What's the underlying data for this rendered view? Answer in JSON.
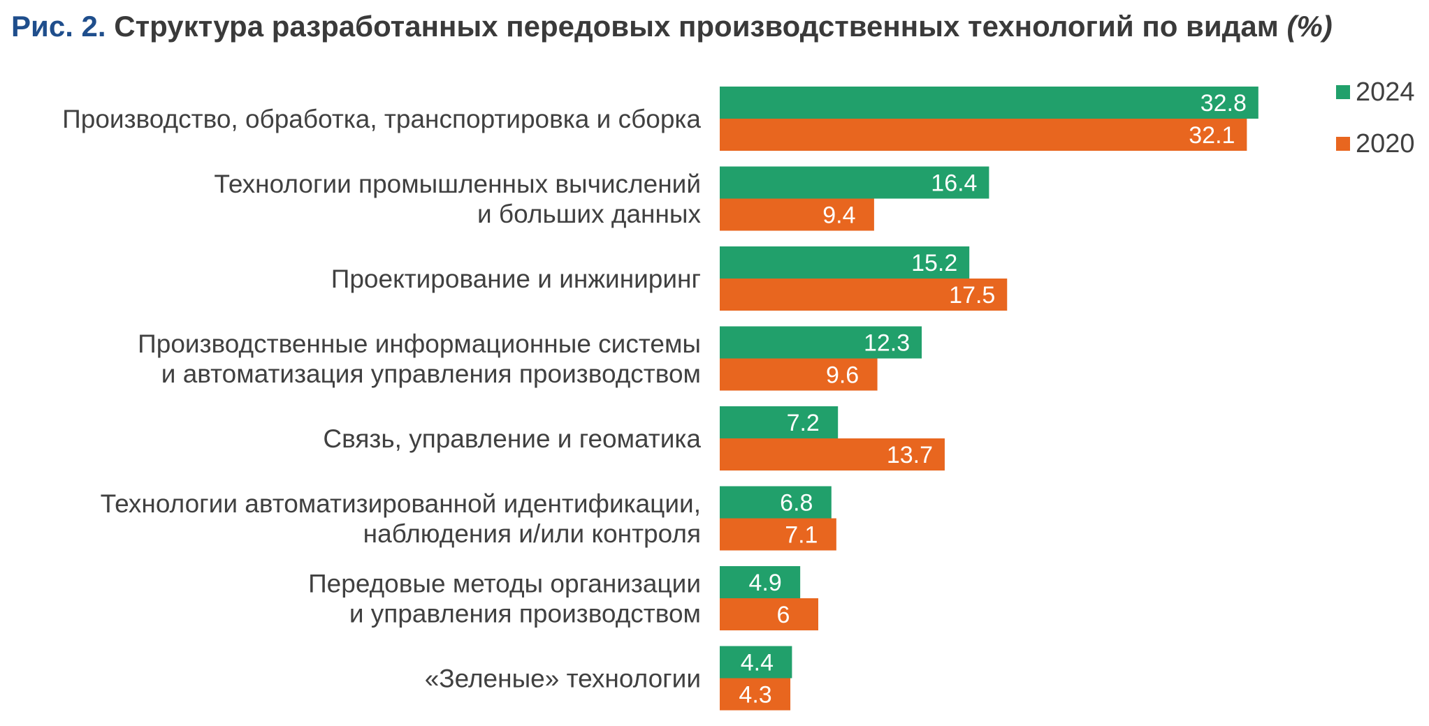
{
  "header": {
    "fig_num": "Рис. 2.",
    "title": "Структура разработанных передовых производственных технологий по видам",
    "unit": "(%)"
  },
  "chart_data": {
    "type": "bar",
    "orientation": "horizontal",
    "title": "Структура разработанных передовых производственных технологий по видам",
    "unit": "(%)",
    "categories": [
      [
        "Производство, обработка, транспортировка и сборка"
      ],
      [
        "Технологии промышленных вычислений",
        "и больших данных"
      ],
      [
        "Проектирование и инжиниринг"
      ],
      [
        "Производственные информационные системы",
        "и автоматизация управления производством"
      ],
      [
        "Связь, управление и геоматика"
      ],
      [
        "Технологии автоматизированной идентификации,",
        "наблюдения и/или контроля"
      ],
      [
        "Передовые методы организации",
        "и управления производством"
      ],
      [
        "«Зеленые» технологии"
      ]
    ],
    "series": [
      {
        "name": "2024",
        "color": "#21a06b",
        "values": [
          32.8,
          16.4,
          15.2,
          12.3,
          7.2,
          6.8,
          4.9,
          4.4
        ]
      },
      {
        "name": "2020",
        "color": "#e8661f",
        "values": [
          32.1,
          9.4,
          17.5,
          9.6,
          13.7,
          7.1,
          6,
          4.3
        ]
      }
    ],
    "value_labels": "inside-end",
    "legend": "top-right",
    "grid": false
  }
}
